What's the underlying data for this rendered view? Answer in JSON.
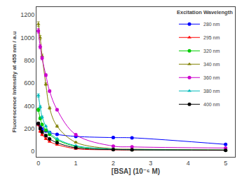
{
  "chart_data": {
    "type": "scatter",
    "xlabel": "[BSA] (10⁻⁶ M)",
    "ylabel": "Fluorescence Intensity at 455 nm / a.u",
    "xlim": [
      -0.05,
      5.25
    ],
    "ylim": [
      -50,
      1270
    ],
    "xticks": [
      0,
      1,
      2,
      3,
      4,
      5
    ],
    "yticks": [
      0,
      200,
      400,
      600,
      800,
      1000,
      1200
    ],
    "grid": false,
    "legend": "upper right",
    "legend_title": "Excitation Wavelength",
    "series": [
      {
        "name": "280 nm",
        "color": "#0000FF",
        "marker": "circle",
        "x": [
          0.0,
          0.05,
          0.1,
          0.2,
          0.3,
          0.5,
          1.0,
          2.0,
          2.5,
          5.0
        ],
        "values": [
          240,
          215,
          195,
          178,
          165,
          148,
          130,
          120,
          118,
          60
        ],
        "yerr": [
          12,
          10,
          10,
          8,
          8,
          8,
          8,
          8,
          8,
          6
        ]
      },
      {
        "name": "295 nm",
        "color": "#FF0000",
        "marker": "triangle-up",
        "x": [
          0.0,
          0.05,
          0.1,
          0.2,
          0.3,
          0.5,
          1.0,
          2.0,
          2.5,
          5.0
        ],
        "values": [
          235,
          175,
          145,
          110,
          85,
          58,
          22,
          12,
          10,
          8
        ],
        "yerr": [
          12,
          10,
          8,
          8,
          6,
          6,
          4,
          4,
          4,
          4
        ]
      },
      {
        "name": "320 nm",
        "color": "#00CC00",
        "marker": "circle",
        "x": [
          0.0,
          0.05,
          0.1,
          0.2,
          0.3,
          0.5,
          1.0,
          2.0,
          2.5,
          5.0
        ],
        "values": [
          365,
          290,
          235,
          185,
          148,
          100,
          42,
          18,
          14,
          10
        ],
        "yerr": [
          15,
          12,
          10,
          8,
          8,
          6,
          5,
          4,
          4,
          4
        ]
      },
      {
        "name": "340 nm",
        "color": "#808000",
        "marker": "triangle-up",
        "x": [
          0.0,
          0.05,
          0.1,
          0.2,
          0.3,
          0.5,
          1.0,
          2.0,
          2.5,
          5.0
        ],
        "values": [
          1120,
          1000,
          840,
          590,
          380,
          220,
          78,
          22,
          18,
          12
        ],
        "yerr": [
          20,
          18,
          15,
          12,
          10,
          10,
          6,
          4,
          4,
          4
        ]
      },
      {
        "name": "360 nm",
        "color": "#CC00CC",
        "marker": "circle",
        "x": [
          0.0,
          0.05,
          0.1,
          0.2,
          0.3,
          0.5,
          1.0,
          2.0,
          2.5,
          5.0
        ],
        "values": [
          1060,
          920,
          820,
          670,
          530,
          365,
          145,
          45,
          38,
          28
        ],
        "yerr": [
          20,
          18,
          15,
          12,
          10,
          10,
          8,
          5,
          5,
          5
        ]
      },
      {
        "name": "380 nm",
        "color": "#00BBBB",
        "marker": "triangle-up",
        "x": [
          0.0,
          0.05,
          0.1,
          0.2,
          0.3,
          0.5,
          1.0,
          2.0,
          2.5,
          5.0
        ],
        "values": [
          490,
          390,
          300,
          220,
          165,
          110,
          48,
          18,
          14,
          10
        ],
        "yerr": [
          15,
          12,
          10,
          8,
          8,
          6,
          5,
          4,
          4,
          4
        ]
      },
      {
        "name": "400 nm",
        "color": "#000000",
        "marker": "circle",
        "x": [
          0.0,
          0.05,
          0.1,
          0.2,
          0.3,
          0.5,
          1.0,
          2.0,
          2.5,
          5.0
        ],
        "values": [
          245,
          200,
          170,
          138,
          108,
          75,
          30,
          14,
          12,
          8
        ],
        "yerr": [
          12,
          10,
          8,
          8,
          6,
          6,
          4,
          4,
          4,
          4
        ]
      }
    ]
  }
}
